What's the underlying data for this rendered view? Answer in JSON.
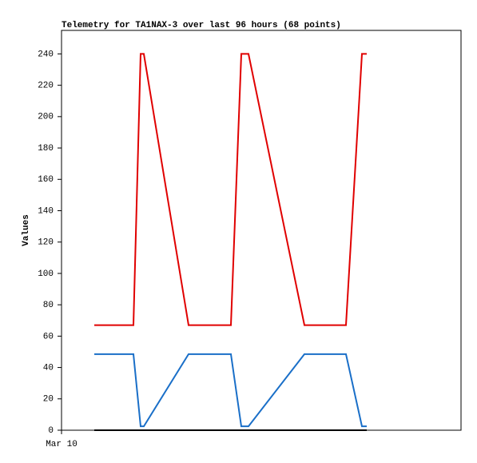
{
  "chart_data": {
    "type": "line",
    "title": "Telemetry for TA1NAX-3 over last 96 hours (68 points)",
    "y_label": "Values",
    "x": [
      8.2,
      18,
      19.8,
      20.6,
      31.8,
      42.4,
      45,
      46.8,
      60.8,
      71.2,
      75.2,
      76.4
    ],
    "xlim": [
      0,
      100
    ],
    "xticks": [
      {
        "value": 0,
        "label": "Mar 10"
      }
    ],
    "ylim": [
      0,
      255
    ],
    "yticks": [
      0,
      20,
      40,
      60,
      80,
      100,
      120,
      140,
      160,
      180,
      200,
      220,
      240
    ],
    "grid": false,
    "series": [
      {
        "color": "#e00000",
        "values": [
          67,
          67,
          240,
          240,
          67,
          67,
          240,
          240,
          67,
          67,
          240,
          240
        ]
      },
      {
        "color": "#1a6fc8",
        "values": [
          48.5,
          48.5,
          2.5,
          2.5,
          48.5,
          48.5,
          2.5,
          2.5,
          48.5,
          48.5,
          2.5,
          2.5
        ]
      },
      {
        "color": "#000000",
        "values": [
          0,
          0,
          0,
          0,
          0,
          0,
          0,
          0,
          0,
          0,
          0,
          0
        ]
      }
    ]
  }
}
